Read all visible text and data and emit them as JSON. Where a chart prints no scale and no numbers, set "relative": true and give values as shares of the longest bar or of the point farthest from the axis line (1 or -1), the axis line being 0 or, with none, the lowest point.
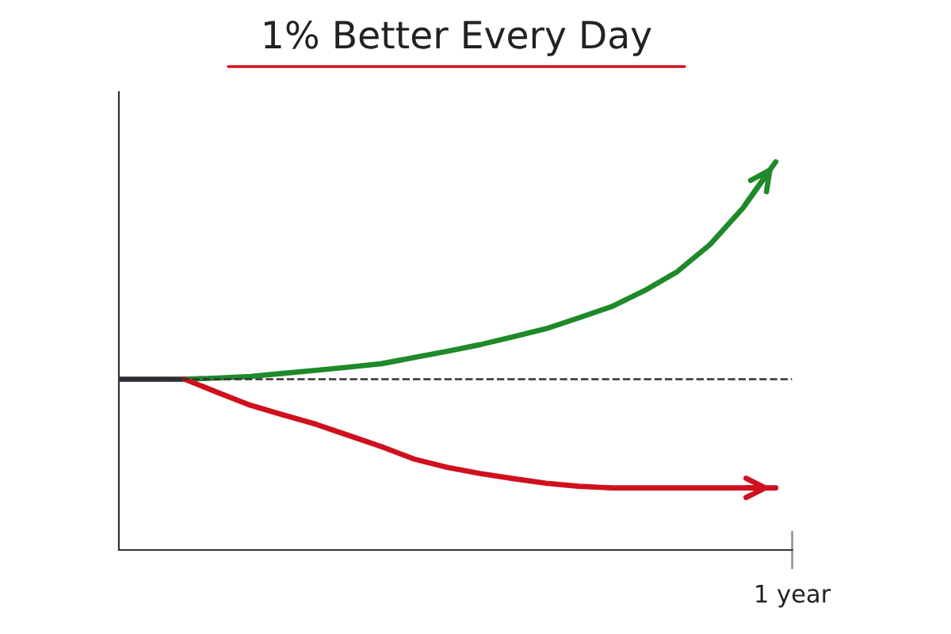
{
  "chart_data": {
    "type": "line",
    "title": "1% Better Every Day",
    "relative": true,
    "legend": false,
    "grid": false,
    "marker": "none",
    "line_style": "solid",
    "categories": [
      null,
      null,
      null,
      null,
      null,
      null,
      null,
      null,
      null,
      null,
      null,
      null,
      null,
      null,
      null,
      null,
      null,
      null,
      null,
      null,
      null
    ],
    "annotations": [
      "1 year"
    ],
    "series": [
      {
        "color": "#2b2b38",
        "values": [
          0.44,
          0.44,
          0.44,
          null,
          null,
          null,
          null,
          null,
          null,
          null,
          null,
          null,
          null,
          null,
          null,
          null,
          null,
          null,
          null,
          null,
          null
        ]
      },
      {
        "color": "#1e8a2a",
        "values": [
          null,
          null,
          0.44,
          0.443,
          0.447,
          0.455,
          0.463,
          0.471,
          0.48,
          0.496,
          0.512,
          0.529,
          0.549,
          0.57,
          0.598,
          0.627,
          0.668,
          0.717,
          0.787,
          0.881,
          1.0
        ]
      },
      {
        "color": "#d0101e",
        "values": [
          null,
          null,
          0.44,
          0.406,
          0.373,
          0.348,
          0.324,
          0.295,
          0.266,
          0.234,
          0.213,
          0.197,
          0.184,
          0.172,
          0.164,
          0.16,
          0.16,
          0.16,
          0.16,
          0.16,
          0.16
        ]
      }
    ],
    "ref_lines": [
      {
        "axis": "y",
        "value": 0.44,
        "color": "#333333",
        "line_style": "dashed"
      }
    ]
  }
}
